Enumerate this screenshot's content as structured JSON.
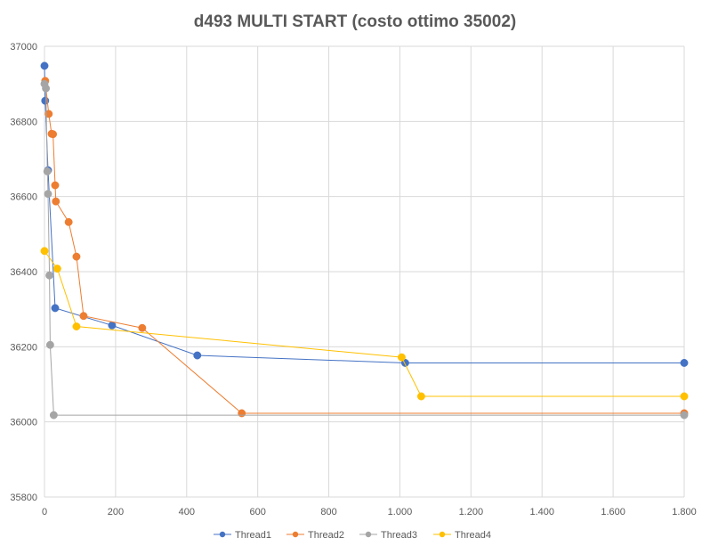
{
  "chart_data": {
    "type": "scatter",
    "title": "d493 MULTI START (costo ottimo 35002)",
    "xlim": [
      0,
      1800
    ],
    "ylim": [
      35800,
      37000
    ],
    "x_ticks": [
      0,
      200,
      400,
      600,
      800,
      1000,
      1200,
      1400,
      1600,
      1800
    ],
    "x_tick_labels": [
      "0",
      "200",
      "400",
      "600",
      "800",
      "1.000",
      "1.200",
      "1.400",
      "1.600",
      "1.800"
    ],
    "y_ticks": [
      35800,
      36000,
      36200,
      36400,
      36600,
      36800,
      37000
    ],
    "y_tick_labels": [
      "35800",
      "36000",
      "36200",
      "36400",
      "36600",
      "36800",
      "37000"
    ],
    "grid": true,
    "legend_position": "bottom",
    "series": [
      {
        "name": "Thread1",
        "color": "#4472C4",
        "points": [
          [
            0,
            36948
          ],
          [
            2,
            36855
          ],
          [
            10,
            36670
          ],
          [
            30,
            36303
          ],
          [
            190,
            36257
          ],
          [
            430,
            36177
          ],
          [
            1015,
            36157
          ],
          [
            1800,
            36157
          ]
        ]
      },
      {
        "name": "Thread2",
        "color": "#ED7D31",
        "points": [
          [
            2,
            36908
          ],
          [
            12,
            36820
          ],
          [
            20,
            36767
          ],
          [
            24,
            36766
          ],
          [
            30,
            36630
          ],
          [
            32,
            36587
          ],
          [
            68,
            36532
          ],
          [
            90,
            36440
          ],
          [
            110,
            36282
          ],
          [
            275,
            36250
          ],
          [
            555,
            36023
          ],
          [
            1800,
            36023
          ]
        ]
      },
      {
        "name": "Thread3",
        "color": "#A5A5A5",
        "points": [
          [
            0,
            36900
          ],
          [
            4,
            36888
          ],
          [
            8,
            36667
          ],
          [
            10,
            36607
          ],
          [
            14,
            36390
          ],
          [
            16,
            36205
          ],
          [
            26,
            36018
          ],
          [
            1800,
            36018
          ]
        ]
      },
      {
        "name": "Thread4",
        "color": "#FFC000",
        "points": [
          [
            0,
            36455
          ],
          [
            36,
            36408
          ],
          [
            90,
            36254
          ],
          [
            1005,
            36172
          ],
          [
            1060,
            36068
          ],
          [
            1800,
            36068
          ]
        ]
      }
    ]
  }
}
